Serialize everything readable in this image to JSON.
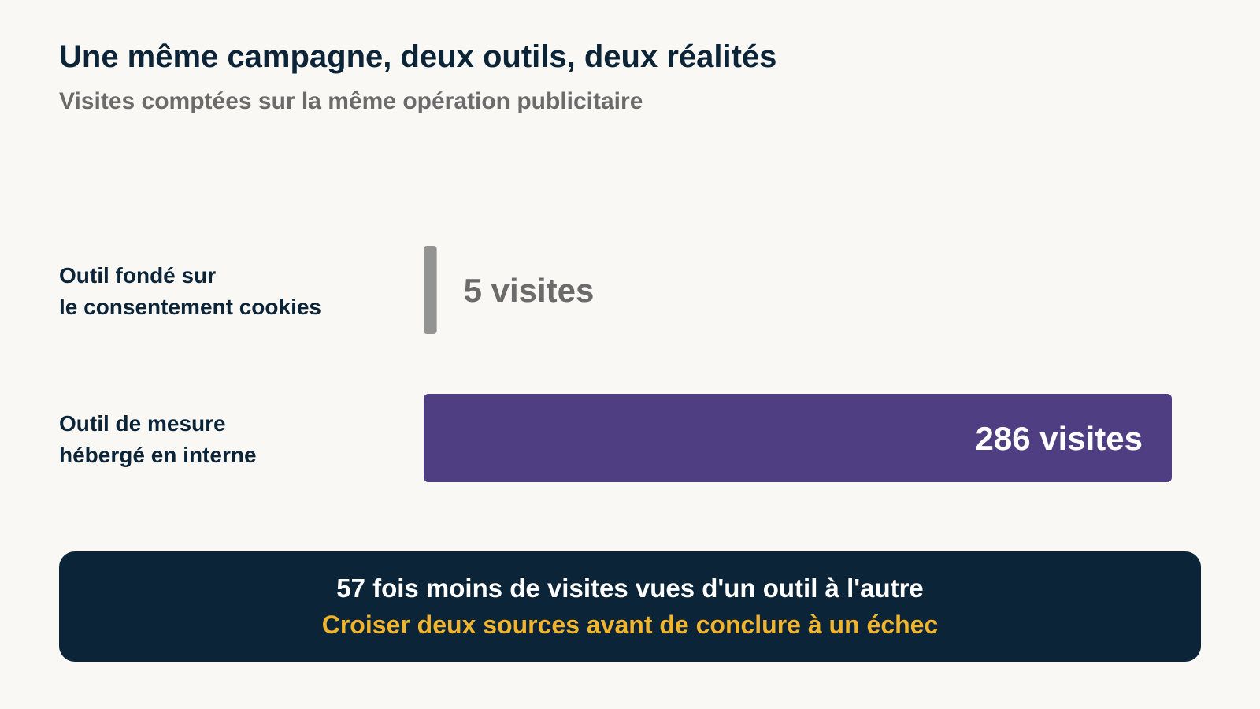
{
  "header": {
    "title": "Une même campagne, deux outils, deux réalités",
    "subtitle": "Visites comptées sur la même opération publicitaire"
  },
  "chart_data": {
    "type": "bar",
    "orientation": "horizontal",
    "title": "Une même campagne, deux outils, deux réalités",
    "subtitle": "Visites comptées sur la même opération publicitaire",
    "categories": [
      [
        "Outil fondé sur",
        "le consentement cookies"
      ],
      [
        "Outil de mesure",
        "hébergé en interne"
      ]
    ],
    "values": [
      5,
      286
    ],
    "value_labels": [
      "5 visites",
      "286 visites"
    ],
    "colors": [
      "#939393",
      "#4f3f82"
    ],
    "value_label_colors": [
      "#6b6b6b",
      "#ffffff"
    ],
    "xlim": [
      0,
      286
    ],
    "grid": false,
    "legend": "none"
  },
  "callout": {
    "main": "57 fois moins de visites vues d'un outil à l'autre",
    "sub": "Croiser deux sources avant de conclure à un échec"
  }
}
